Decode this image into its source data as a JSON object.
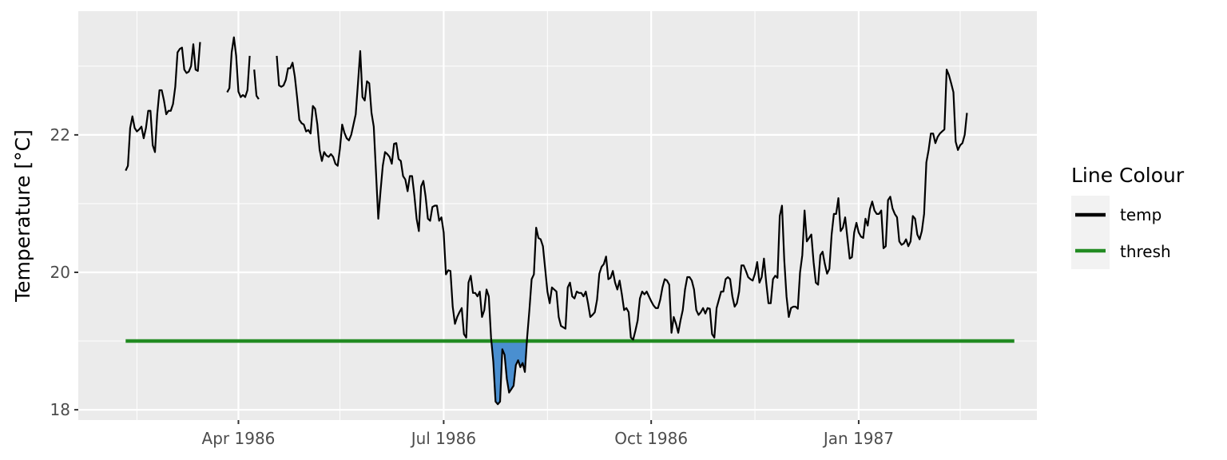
{
  "chart_data": {
    "type": "line",
    "title": "",
    "xlabel": "",
    "ylabel": "Temperature [°C]",
    "x_axis_type": "date",
    "xlim": [
      "1986-01-20",
      "1987-03-21"
    ],
    "ylim": [
      17.85,
      23.8
    ],
    "y_ticks": [
      18,
      20,
      22
    ],
    "x_tick_labels": [
      {
        "date": "1986-04-01",
        "label": "Apr 1986"
      },
      {
        "date": "1986-07-01",
        "label": "Jul 1986"
      },
      {
        "date": "1986-10-01",
        "label": "Oct 1986"
      },
      {
        "date": "1987-01-01",
        "label": "Jan 1987"
      }
    ],
    "x_minor_gridlines": [
      "1986-02-15",
      "1986-05-16",
      "1986-08-16",
      "1986-11-16",
      "1987-02-15"
    ],
    "grid": true,
    "background": "#ebebeb",
    "legend": {
      "title": "Line Colour",
      "placement": "right",
      "entries": [
        {
          "label": "temp",
          "color": "#000000"
        },
        {
          "label": "thresh",
          "color": "#228b22"
        }
      ]
    },
    "event_fill_color": "#4a8fd0",
    "start_date": "1986-02-10",
    "series": [
      {
        "name": "thresh",
        "color": "#228b22",
        "points": [
          [
            "1986-02-10",
            19.0
          ],
          [
            "1987-03-11",
            19.0
          ]
        ]
      },
      {
        "name": "temp",
        "color": "#000000",
        "values": [
          21.48,
          21.55,
          22.1,
          22.27,
          22.1,
          22.05,
          22.08,
          22.12,
          21.95,
          22.1,
          22.35,
          22.35,
          21.85,
          21.75,
          22.3,
          22.65,
          22.65,
          22.5,
          22.3,
          22.35,
          22.35,
          22.45,
          22.7,
          23.2,
          23.25,
          23.27,
          22.95,
          22.9,
          22.92,
          23.0,
          23.32,
          22.95,
          22.93,
          23.35,
          null,
          null,
          null,
          null,
          null,
          null,
          null,
          null,
          null,
          null,
          null,
          22.62,
          22.68,
          23.2,
          23.42,
          23.15,
          22.63,
          22.55,
          22.58,
          22.55,
          22.65,
          23.15,
          null,
          22.95,
          22.57,
          22.52,
          null,
          null,
          null,
          null,
          null,
          null,
          null,
          23.15,
          22.72,
          22.7,
          22.72,
          22.8,
          22.97,
          22.97,
          23.05,
          22.85,
          22.55,
          22.22,
          22.17,
          22.15,
          22.05,
          22.07,
          22.02,
          22.42,
          22.38,
          22.15,
          21.78,
          21.62,
          21.75,
          21.7,
          21.68,
          21.72,
          21.68,
          21.58,
          21.55,
          21.8,
          22.15,
          22.03,
          21.95,
          21.92,
          22.0,
          22.15,
          22.3,
          22.75,
          23.22,
          22.55,
          22.5,
          22.78,
          22.75,
          22.32,
          22.12,
          21.45,
          20.78,
          21.18,
          21.55,
          21.75,
          21.72,
          21.68,
          21.58,
          21.87,
          21.88,
          21.65,
          21.62,
          21.4,
          21.35,
          21.18,
          21.4,
          21.4,
          21.12,
          20.78,
          20.6,
          21.25,
          21.33,
          21.1,
          20.78,
          20.75,
          20.95,
          20.97,
          20.97,
          20.75,
          20.8,
          20.58,
          19.97,
          20.03,
          20.02,
          19.5,
          19.25,
          19.35,
          19.42,
          19.48,
          19.1,
          19.05,
          19.85,
          19.95,
          19.7,
          19.7,
          19.65,
          19.72,
          19.35,
          19.45,
          19.75,
          19.65,
          19.05,
          18.7,
          18.12,
          18.08,
          18.12,
          18.88,
          18.8,
          18.45,
          18.25,
          18.3,
          18.35,
          18.65,
          18.72,
          18.62,
          18.68,
          18.55,
          19.05,
          19.45,
          19.9,
          19.97,
          20.65,
          20.5,
          20.48,
          20.38,
          20.05,
          19.72,
          19.55,
          19.78,
          19.75,
          19.72,
          19.35,
          19.22,
          19.2,
          19.18,
          19.78,
          19.85,
          19.65,
          19.62,
          19.72,
          19.7,
          19.7,
          19.65,
          19.72,
          19.55,
          19.35,
          19.38,
          19.42,
          19.6,
          19.98,
          20.08,
          20.12,
          20.23,
          19.9,
          19.92,
          20.02,
          19.85,
          19.75,
          19.88,
          19.68,
          19.45,
          19.48,
          19.42,
          19.05,
          19.02,
          19.15,
          19.3,
          19.62,
          19.72,
          19.68,
          19.72,
          19.65,
          19.58,
          19.52,
          19.48,
          19.48,
          19.6,
          19.78,
          19.9,
          19.88,
          19.82,
          19.12,
          19.35,
          19.25,
          19.12,
          19.3,
          19.45,
          19.75,
          19.93,
          19.93,
          19.88,
          19.75,
          19.45,
          19.38,
          19.42,
          19.48,
          19.4,
          19.48,
          19.47,
          19.1,
          19.05,
          19.48,
          19.6,
          19.72,
          19.72,
          19.9,
          19.93,
          19.9,
          19.65,
          19.5,
          19.55,
          19.72,
          20.1,
          20.1,
          20.02,
          19.93,
          19.9,
          19.88,
          19.98,
          20.15,
          19.85,
          19.93,
          20.2,
          19.85,
          19.55,
          19.55,
          19.9,
          19.95,
          19.92,
          20.82,
          20.97,
          20.18,
          19.65,
          19.35,
          19.48,
          19.5,
          19.5,
          19.47,
          20.0,
          20.25,
          20.9,
          20.45,
          20.5,
          20.55,
          20.15,
          19.85,
          19.82,
          20.25,
          20.3,
          20.12,
          19.98,
          20.05,
          20.55,
          20.85,
          20.85,
          21.08,
          20.6,
          20.65,
          20.8,
          20.5,
          20.2,
          20.22,
          20.58,
          20.72,
          20.58,
          20.52,
          20.5,
          20.78,
          20.68,
          20.92,
          21.03,
          20.9,
          20.85,
          20.85,
          20.9,
          20.35,
          20.38,
          21.05,
          21.1,
          20.93,
          20.85,
          20.8,
          20.45,
          20.4,
          20.42,
          20.48,
          20.38,
          20.45,
          20.82,
          20.78,
          20.55,
          20.48,
          20.6,
          20.85,
          21.6,
          21.78,
          22.02,
          22.02,
          21.88,
          21.97,
          22.02,
          22.05,
          22.08,
          22.95,
          22.87,
          22.75,
          22.62,
          21.9,
          21.78,
          21.85,
          21.88,
          22.0,
          22.32
        ]
      }
    ]
  }
}
